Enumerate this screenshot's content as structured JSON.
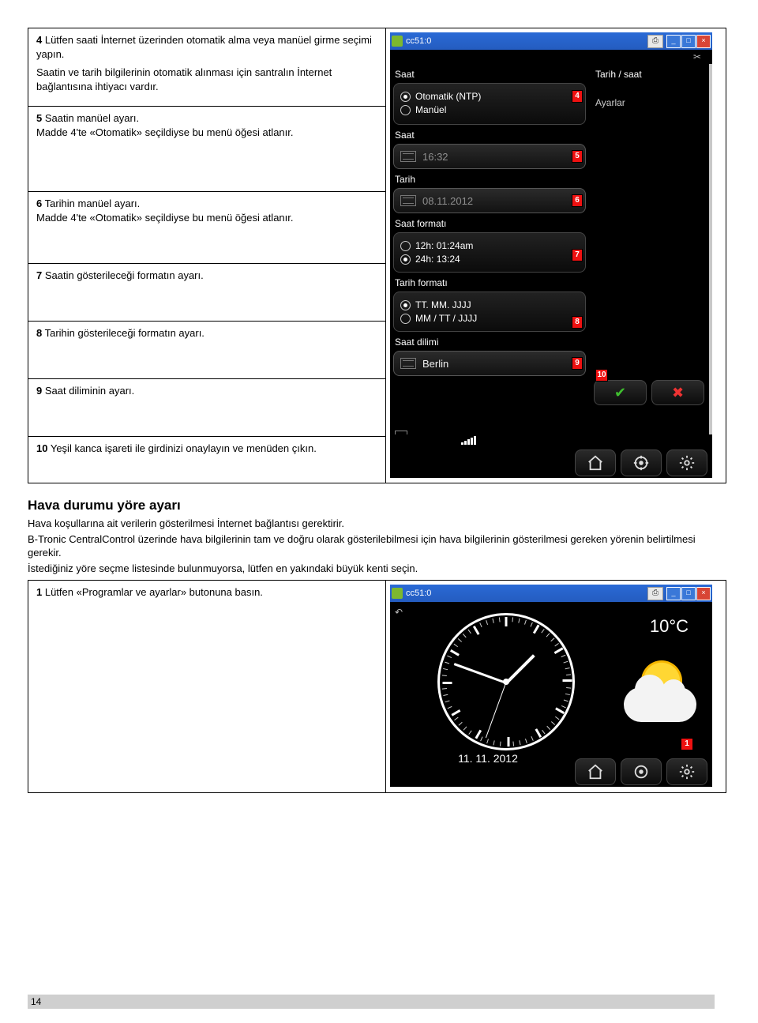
{
  "steps": {
    "s4a": "4",
    "s4a_text": " Lütfen saati İnternet üzerinden otomatik alma veya manüel girme seçimi yapın.",
    "s4b": "Saatin ve tarih bilgilerinin otomatik alınması için santralın İnternet bağlantısına ihtiyacı vardır.",
    "s5a": "5",
    "s5a_text": " Saatin manüel ayarı.",
    "s5b": "Madde 4'te «Otomatik» seçildiyse bu menü öğesi atlanır.",
    "s6a": "6",
    "s6a_text": " Tarihin manüel ayarı.",
    "s6b": "Madde 4'te «Otomatik» seçildiyse bu menü öğesi atlanır.",
    "s7a": "7",
    "s7a_text": " Saatin gösterileceği formatın ayarı.",
    "s8a": "8",
    "s8a_text": " Tarihin gösterileceği formatın ayarı.",
    "s9a": "9",
    "s9a_text": " Saat diliminin ayarı.",
    "s10a": "10",
    "s10a_text": " Yeşil kanca işareti ile girdinizi onaylayın ve menüden çıkın."
  },
  "dev1": {
    "title": "cc51:0",
    "saat_hdr": "Saat",
    "tarih_saat": "Tarih / saat",
    "ayarlar": "Ayarlar",
    "ntp": "Otomatik (NTP)",
    "manuel": "Manüel",
    "saat_lbl": "Saat",
    "time_val": "16:32",
    "tarih_lbl": "Tarih",
    "date_val": "08.11.2012",
    "saat_fmt": "Saat formatı",
    "f12": "12h: 01:24am",
    "f24": "24h: 13:24",
    "tarih_fmt": "Tarih formatı",
    "tt": "TT. MM. JJJJ",
    "mm": "MM / TT / JJJJ",
    "saat_dilimi": "Saat dilimi",
    "tz": "Berlin",
    "b4": "4",
    "b5": "5",
    "b6": "6",
    "b7": "7",
    "b8": "8",
    "b9": "9",
    "b10": "10",
    "colors": {
      "bg": "#000",
      "card": "#1a1a1a",
      "accent_red": "#e11",
      "titlebar": "#2a6ad6"
    }
  },
  "section2": {
    "title": "Hava durumu yöre ayarı",
    "p1": "Hava koşullarına ait verilerin gösterilmesi İnternet bağlantısı gerektirir.",
    "p2": "B-Tronic CentralControl üzerinde hava bilgilerinin tam ve doğru olarak gösterilebilmesi için hava bilgilerinin gösterilmesi gereken yörenin belirtilmesi gerekir.",
    "p3": "İstediğiniz yöre seçme listesinde bulunmuyorsa, lütfen en yakındaki büyük kenti seçin.",
    "step1_num": "1",
    "step1_text": " Lütfen «Programlar ve ayarlar» butonuna basın."
  },
  "dev2": {
    "title": "cc51:0",
    "date": "11. 11. 2012",
    "temp": "10°C",
    "badge1": "1"
  },
  "pagenum": "14"
}
